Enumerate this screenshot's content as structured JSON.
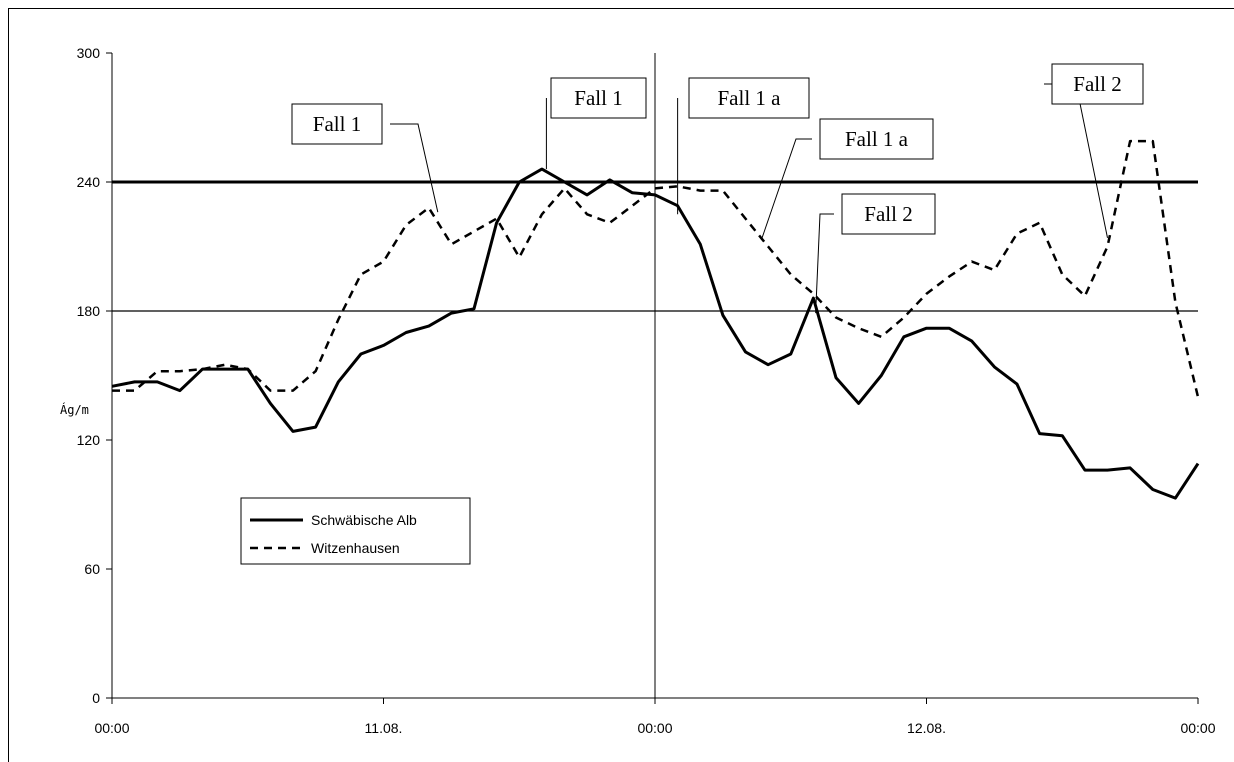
{
  "chart_data": {
    "type": "line",
    "ylabel": "Ág/m",
    "xticks": [
      "00:00",
      "11.08.",
      "00:00",
      "12.08.",
      "00:00"
    ],
    "yticks": [
      0,
      60,
      120,
      180,
      240,
      300
    ],
    "ylim": [
      0,
      300
    ],
    "xlim": [
      0,
      48
    ],
    "grid": false,
    "legend_position": "center-left",
    "reference_lines": [
      {
        "y": 240,
        "style": "thick"
      },
      {
        "y": 180,
        "style": "thin"
      }
    ],
    "vertical_line_x": 24,
    "series": [
      {
        "name": "Schwäbische Alb",
        "style": "solid",
        "x": [
          0,
          1,
          2,
          3,
          4,
          5,
          6,
          7,
          8,
          9,
          10,
          11,
          12,
          13,
          14,
          15,
          16,
          17,
          18,
          19,
          20,
          21,
          22,
          23,
          24,
          25,
          26,
          27,
          28,
          29,
          30,
          31,
          32,
          33,
          34,
          35,
          36,
          37,
          38,
          39,
          40,
          41,
          42,
          43,
          44,
          45,
          46,
          47,
          48
        ],
        "y": [
          145,
          147,
          147,
          143,
          153,
          153,
          153,
          137,
          124,
          126,
          147,
          160,
          164,
          170,
          173,
          179,
          181,
          221,
          240,
          246,
          240,
          234,
          241,
          235,
          234,
          229,
          211,
          178,
          161,
          155,
          160,
          186,
          149,
          137,
          150,
          168,
          172,
          172,
          166,
          154,
          146,
          123,
          122,
          106,
          106,
          107,
          97,
          93,
          109
        ]
      },
      {
        "name": "Witzenhausen",
        "style": "dashed",
        "x": [
          0,
          1,
          2,
          3,
          4,
          5,
          6,
          7,
          8,
          9,
          10,
          11,
          12,
          13,
          14,
          15,
          16,
          17,
          18,
          19,
          20,
          21,
          22,
          23,
          24,
          25,
          26,
          27,
          28,
          29,
          30,
          31,
          32,
          33,
          34,
          35,
          36,
          37,
          38,
          39,
          40,
          41,
          42,
          43,
          44,
          45,
          46,
          47,
          48
        ],
        "y": [
          143,
          143,
          152,
          152,
          153,
          155,
          153,
          143,
          143,
          152,
          176,
          197,
          203,
          220,
          228,
          211,
          217,
          223,
          205,
          225,
          237,
          225,
          221,
          229,
          237,
          238,
          236,
          236,
          223,
          210,
          197,
          188,
          177,
          172,
          168,
          177,
          188,
          196,
          203,
          199,
          216,
          221,
          197,
          187,
          210,
          259,
          259,
          184,
          140
        ]
      }
    ],
    "annotations": [
      {
        "label": "Fall 1",
        "target_x": 14.4,
        "target_y": 226
      },
      {
        "label": "Fall 1",
        "target_x": 19.2,
        "target_y": 246
      },
      {
        "label": "Fall 1 a",
        "target_x": 25.0,
        "target_y": 225
      },
      {
        "label": "Fall 1 a",
        "target_x": 28.7,
        "target_y": 213
      },
      {
        "label": "Fall 2",
        "target_x": 31.1,
        "target_y": 179
      },
      {
        "label": "Fall 2",
        "target_x": 44.0,
        "target_y": 214
      }
    ]
  }
}
